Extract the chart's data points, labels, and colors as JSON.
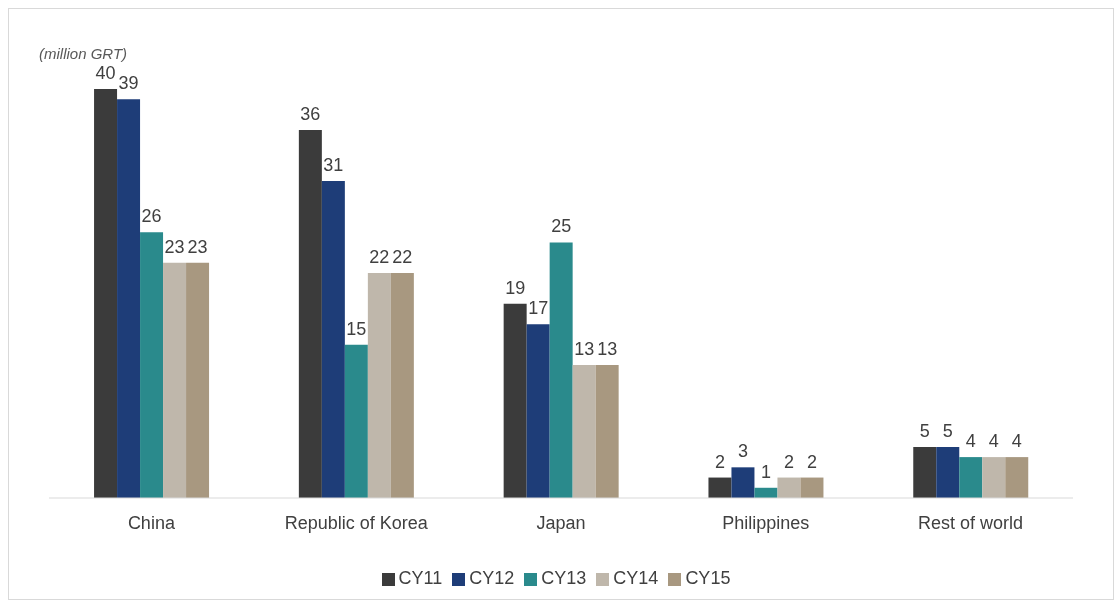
{
  "chart_data": {
    "type": "bar",
    "ylabel": "(million GRT)",
    "categories": [
      "China",
      "Republic of Korea",
      "Japan",
      "Philippines",
      "Rest of world"
    ],
    "series": [
      {
        "name": "CY11",
        "color": "#3b3b3b",
        "values": [
          40,
          36,
          19,
          2,
          5
        ]
      },
      {
        "name": "CY12",
        "color": "#1e3d78",
        "values": [
          39,
          31,
          17,
          3,
          5
        ]
      },
      {
        "name": "CY13",
        "color": "#2a8a8c",
        "values": [
          26,
          15,
          25,
          1,
          4
        ]
      },
      {
        "name": "CY14",
        "color": "#bfb7ab",
        "values": [
          23,
          22,
          13,
          2,
          4
        ]
      },
      {
        "name": "CY15",
        "color": "#a89880",
        "values": [
          23,
          22,
          13,
          2,
          4
        ]
      }
    ],
    "data_labels": true,
    "legend": "bottom"
  }
}
